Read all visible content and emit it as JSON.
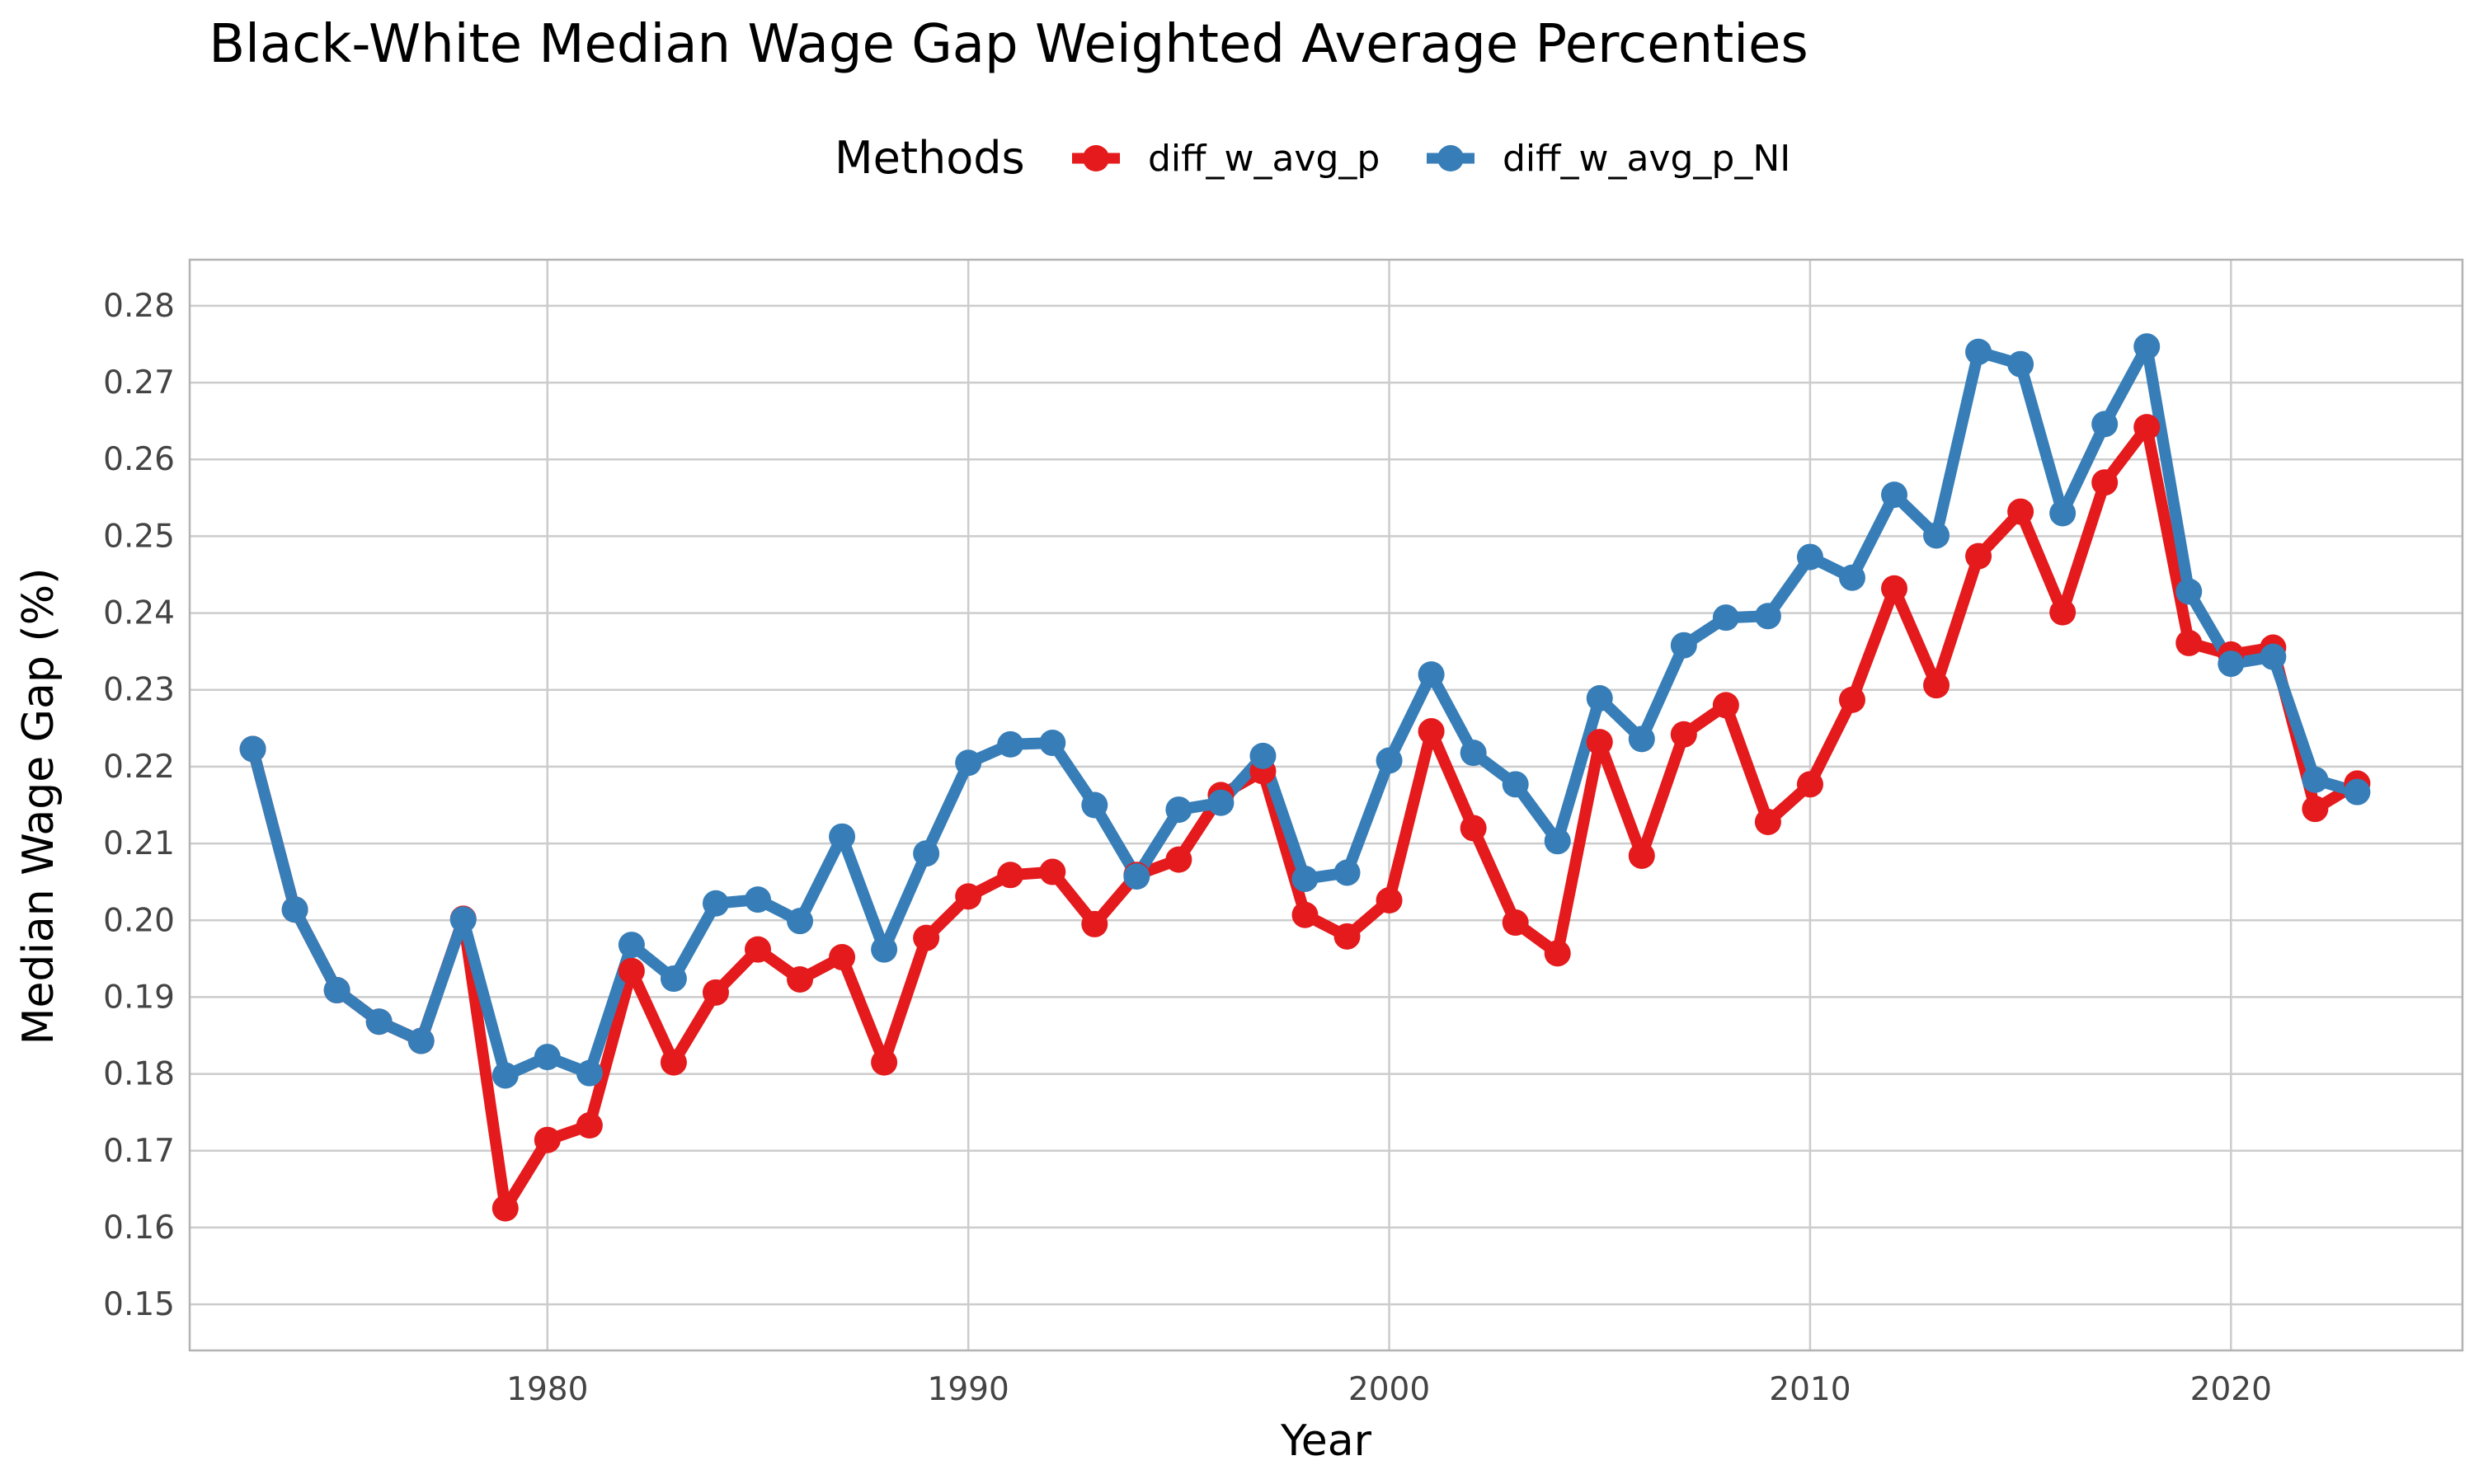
{
  "chart_data": {
    "type": "line",
    "title": "Black-White Median Wage Gap Weighted Average Percenties",
    "xlabel": "Year",
    "ylabel": "Median Wage Gap (%)",
    "legend": {
      "title": "Methods",
      "position": "top"
    },
    "xlim": [
      1971.5,
      2025.5
    ],
    "ylim": [
      0.144,
      0.286
    ],
    "x_ticks": [
      1980,
      1990,
      2000,
      2010,
      2020
    ],
    "y_ticks": [
      0.15,
      0.16,
      0.17,
      0.18,
      0.19,
      0.2,
      0.21,
      0.22,
      0.23,
      0.24,
      0.25,
      0.26,
      0.27,
      0.28
    ],
    "y_tick_labels": [
      "0.15",
      "0.16",
      "0.17",
      "0.18",
      "0.19",
      "0.20",
      "0.21",
      "0.22",
      "0.23",
      "0.24",
      "0.25",
      "0.26",
      "0.27",
      "0.28"
    ],
    "grid": true,
    "series": [
      {
        "name": "diff_w_avg_p",
        "color": "#e41a1c",
        "x": [
          1973,
          1974,
          1975,
          1976,
          1977,
          1978,
          1979,
          1980,
          1981,
          1982,
          1983,
          1984,
          1985,
          1986,
          1987,
          1988,
          1989,
          1990,
          1991,
          1992,
          1993,
          1994,
          1995,
          1996,
          1997,
          1998,
          1999,
          2000,
          2001,
          2002,
          2003,
          2004,
          2005,
          2006,
          2007,
          2008,
          2009,
          2010,
          2011,
          2012,
          2013,
          2014,
          2015,
          2016,
          2017,
          2018,
          2019,
          2020,
          2021,
          2022,
          2023
        ],
        "values": [
          0.2223,
          0.2014,
          0.1909,
          0.1868,
          0.1843,
          0.2002,
          0.1625,
          0.1714,
          0.1733,
          0.1934,
          0.1815,
          0.1906,
          0.1962,
          0.1923,
          0.1952,
          0.1815,
          0.1977,
          0.2031,
          0.2059,
          0.2063,
          0.1995,
          0.2059,
          0.2079,
          0.2163,
          0.2194,
          0.2007,
          0.1979,
          0.2026,
          0.2246,
          0.212,
          0.1997,
          0.1957,
          0.2232,
          0.2084,
          0.2242,
          0.228,
          0.2128,
          0.2177,
          0.2287,
          0.2432,
          0.2306,
          0.2474,
          0.2532,
          0.2401,
          0.257,
          0.2642,
          0.2361,
          0.2346,
          0.2355,
          0.2145,
          0.2178
        ]
      },
      {
        "name": "diff_w_avg_p_NI",
        "color": "#377eb8",
        "x": [
          1973,
          1974,
          1975,
          1976,
          1977,
          1978,
          1979,
          1980,
          1981,
          1982,
          1983,
          1984,
          1985,
          1986,
          1987,
          1988,
          1989,
          1990,
          1991,
          1992,
          1993,
          1994,
          1995,
          1996,
          1997,
          1998,
          1999,
          2000,
          2001,
          2002,
          2003,
          2004,
          2005,
          2006,
          2007,
          2008,
          2009,
          2010,
          2011,
          2012,
          2013,
          2014,
          2015,
          2016,
          2017,
          2018,
          2019,
          2020,
          2021,
          2022,
          2023
        ],
        "values": [
          0.2223,
          0.2014,
          0.1909,
          0.1868,
          0.1843,
          0.2001,
          0.1798,
          0.1822,
          0.1801,
          0.1968,
          0.1924,
          0.2022,
          0.2027,
          0.1999,
          0.2109,
          0.1962,
          0.2087,
          0.2205,
          0.2229,
          0.2231,
          0.215,
          0.2057,
          0.2144,
          0.2153,
          0.2214,
          0.2054,
          0.2062,
          0.2208,
          0.232,
          0.2218,
          0.2177,
          0.2103,
          0.2289,
          0.2236,
          0.2358,
          0.2394,
          0.2396,
          0.2473,
          0.2446,
          0.2554,
          0.2501,
          0.274,
          0.2724,
          0.253,
          0.2646,
          0.2747,
          0.2428,
          0.2334,
          0.2343,
          0.2183,
          0.2167
        ]
      }
    ]
  }
}
